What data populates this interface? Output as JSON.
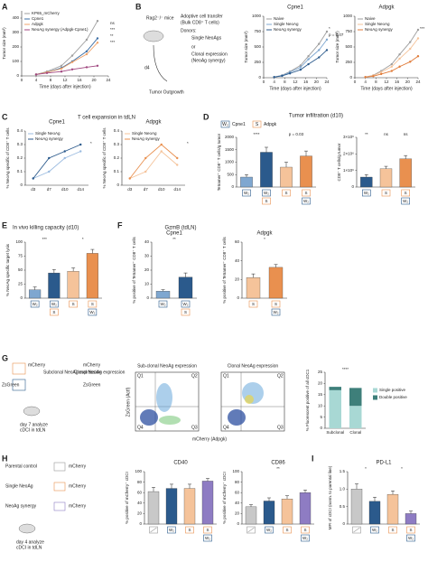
{
  "panels": [
    "A",
    "B",
    "C",
    "D",
    "E",
    "F",
    "G",
    "H",
    "I"
  ],
  "icons": {
    "cpne1": "W₂",
    "adpgk": "S"
  },
  "headers": {
    "tcell": "T cell expansion in tdLN",
    "infil": "Tumor infiltration (d10)",
    "d_cpne1": "Cpne1",
    "d_adpgk": "Adpgk",
    "killing": "In vivo killing capacity (d10)",
    "gzmb": "GzmB (tdLN)"
  },
  "diagrams": {
    "b": [
      "Rag2⁻/⁻ mice",
      "Adoptive cell transfer",
      "(Bulk CD8⁺ T cells)",
      "Donors:",
      "Single NeoAgs",
      "or",
      "Clonal expression",
      "(NeoAg synergy)",
      "d4",
      "Tumor Outgrowth"
    ],
    "g": [
      "mCherry",
      "Subclonal NeoAg expression",
      "ZsGreen",
      "mCherry",
      "Clonal NeoAg expression",
      "ZsGreen",
      "day 7 analyze",
      "cDCI in tdLN"
    ],
    "h": [
      "Parental control",
      "mCherry",
      "Single NeoAg",
      "mCherry",
      "NeoAg synergy",
      "mCherry",
      "day 4 analyze",
      "cDCI in tdLN"
    ]
  },
  "flow": {
    "titles": [
      "Sub-clonal NeoAg expression",
      "Clonal NeoAg expression"
    ],
    "xlabel": "mCherry (Adpgk)",
    "ylabel": "ZsGreen (Actf)",
    "quadrants": [
      "Q1",
      "Q2",
      "Q3",
      "Q4"
    ]
  },
  "chart_data": [
    {
      "type": "line",
      "ylabel": "Tumor size (mm³)",
      "xlabel": "Time (days after injection)",
      "x": [
        4,
        7,
        11,
        14,
        18,
        21
      ],
      "xlim": [
        0,
        24
      ],
      "xticks": [
        0,
        4,
        8,
        12,
        16,
        20,
        24
      ],
      "ylim": [
        0,
        450
      ],
      "yticks": [
        0,
        100,
        200,
        300,
        400
      ],
      "legend": "upper left",
      "series": [
        {
          "name": "KP65_mCherry",
          "color": "#9e9e9e",
          "values": [
            10,
            30,
            70,
            140,
            250,
            380
          ]
        },
        {
          "name": "Cpne1",
          "color": "#3b6ea5",
          "values": [
            10,
            25,
            55,
            100,
            170,
            260
          ]
        },
        {
          "name": "Adpgk",
          "color": "#f0a36b",
          "values": [
            10,
            25,
            50,
            95,
            150,
            230
          ]
        },
        {
          "name": "NeoAg synergy (Adpgk-Cpne1)",
          "color": "#a0467f",
          "values": [
            10,
            20,
            30,
            45,
            60,
            70
          ]
        }
      ],
      "annotations": [
        "ns",
        "***",
        "**",
        "***"
      ]
    },
    {
      "type": "line",
      "title": "Cpne1",
      "ylabel": "Tumor size (mm³)",
      "xlabel": "Time (days after injection)",
      "x": [
        4,
        7,
        10,
        14,
        17,
        21,
        24
      ],
      "xlim": [
        0,
        24
      ],
      "xticks": [
        0,
        4,
        8,
        12,
        16,
        20,
        24
      ],
      "ylim": [
        0,
        1000
      ],
      "yticks": [
        0,
        250,
        500,
        750,
        1000
      ],
      "legend": "upper left",
      "series": [
        {
          "name": "Naive",
          "color": "#9e9e9e",
          "values": [
            10,
            40,
            100,
            200,
            350,
            550,
            750
          ]
        },
        {
          "name": "Single NeoAg",
          "color": "#7fa7d0",
          "values": [
            10,
            35,
            90,
            170,
            300,
            450,
            620
          ]
        },
        {
          "name": "NeoAg synergy",
          "color": "#2b5a8c",
          "values": [
            10,
            30,
            70,
            130,
            220,
            330,
            450
          ]
        }
      ],
      "annotations": [
        "*",
        "p = 0.07"
      ]
    },
    {
      "type": "line",
      "title": "Adpgk",
      "ylabel": "Tumor size (mm³)",
      "xlabel": "Time (days after injection)",
      "x": [
        4,
        7,
        10,
        14,
        17,
        21,
        24
      ],
      "xlim": [
        0,
        24
      ],
      "xticks": [
        0,
        4,
        8,
        12,
        16,
        20,
        24
      ],
      "ylim": [
        0,
        1000
      ],
      "yticks": [
        0,
        250,
        500,
        750,
        1000
      ],
      "legend": "upper left",
      "series": [
        {
          "name": "Naive",
          "color": "#9e9e9e",
          "values": [
            10,
            40,
            110,
            220,
            380,
            580,
            780
          ]
        },
        {
          "name": "Single NeoAg",
          "color": "#f5c39a",
          "values": [
            10,
            35,
            90,
            180,
            310,
            470,
            640
          ]
        },
        {
          "name": "NeoAg synergy",
          "color": "#e07b39",
          "values": [
            10,
            25,
            60,
            110,
            180,
            260,
            350
          ]
        }
      ],
      "annotations": [
        "***"
      ]
    },
    {
      "type": "line",
      "title": "Cpne1",
      "ylabel": "% NeoAg specific of CD8⁺ T cells",
      "categories": [
        "d3",
        "d7",
        "d10",
        "d14"
      ],
      "ylim": [
        0,
        0.4
      ],
      "yticks": [
        0,
        0.1,
        0.2,
        0.3,
        0.4
      ],
      "legend": "upper left",
      "series": [
        {
          "name": "Single NeoAg",
          "color": "#9bbbe0",
          "values": [
            0.05,
            0.1,
            0.2,
            0.25
          ]
        },
        {
          "name": "NeoAg synergy",
          "color": "#2b5a8c",
          "values": [
            0.05,
            0.2,
            0.25,
            0.3
          ]
        }
      ],
      "annotations": [
        "*"
      ]
    },
    {
      "type": "line",
      "title": "Adpgk",
      "ylabel": "% NeoAg specific of CD8⁺ T cells",
      "categories": [
        "d3",
        "d7",
        "d10",
        "d14"
      ],
      "ylim": [
        0,
        0.4
      ],
      "yticks": [
        0,
        0.1,
        0.2,
        0.3,
        0.4
      ],
      "legend": "upper left",
      "series": [
        {
          "name": "Single NeoAg",
          "color": "#f5c39a",
          "values": [
            0.05,
            0.1,
            0.25,
            0.15
          ]
        },
        {
          "name": "NeoAg synergy",
          "color": "#e9904f",
          "values": [
            0.05,
            0.2,
            0.3,
            0.2
          ]
        }
      ],
      "annotations": [
        "*"
      ]
    },
    {
      "type": "bar",
      "ylabel": "Tetramer⁺ CD8⁺ T cells/g tumor",
      "categories": [
        [
          "W₂"
        ],
        [
          "W₂",
          "S"
        ],
        [
          "S"
        ],
        [
          "S",
          "W₂"
        ]
      ],
      "values": [
        400,
        1400,
        800,
        1250
      ],
      "errors": [
        100,
        200,
        200,
        200
      ],
      "colors": [
        "#7fa7d0",
        "#2b5a8c",
        "#f5c39a",
        "#e9904f"
      ],
      "ylim": [
        0,
        2000
      ],
      "yticks": [
        0,
        500,
        1000,
        1500,
        2000
      ],
      "annotations": [
        "****",
        "p = 0.03"
      ]
    },
    {
      "type": "bar",
      "ylabel": "CD8⁺ T cells/g tumor",
      "categories": [
        [
          "W₂"
        ],
        [
          "S"
        ],
        [
          "S",
          "W₂"
        ]
      ],
      "values": [
        600000,
        1100000,
        1700000
      ],
      "errors": [
        150000,
        150000,
        200000
      ],
      "colors": [
        "#2b5a8c",
        "#f5c39a",
        "#e9904f"
      ],
      "ylim": [
        0,
        3000000
      ],
      "yticks": [
        0,
        {
          "value": 1000000,
          "label": "1×10⁶"
        },
        {
          "value": 2000000,
          "label": "2×10⁶"
        },
        {
          "value": 3000000,
          "label": "3×10⁶"
        }
      ],
      "annotations": [
        "**",
        "ns",
        "ns"
      ]
    },
    {
      "type": "bar",
      "ylabel": "% NeoAg specific target lysis",
      "categories": [
        [
          "W₂"
        ],
        [
          "W₂",
          "S"
        ],
        [
          "S"
        ],
        [
          "S",
          "W₂"
        ]
      ],
      "values": [
        15,
        45,
        48,
        80
      ],
      "errors": [
        5,
        6,
        6,
        7
      ],
      "colors": [
        "#7fa7d0",
        "#2b5a8c",
        "#f5c39a",
        "#e9904f"
      ],
      "ylim": [
        0,
        100
      ],
      "yticks": [
        0,
        25,
        50,
        75,
        100
      ],
      "annotations": [
        "***",
        "*"
      ]
    },
    {
      "type": "bar",
      "title": "Cpne1",
      "ylabel": "% positive of Tetramer⁺ CD8⁺ T cells",
      "categories": [
        [
          "W₂"
        ],
        [
          "W₂",
          "S"
        ]
      ],
      "values": [
        5,
        15
      ],
      "errors": [
        1,
        3
      ],
      "colors": [
        "#7fa7d0",
        "#2b5a8c"
      ],
      "ylim": [
        0,
        40
      ],
      "yticks": [
        0,
        10,
        20,
        30,
        40
      ],
      "annotations": [
        "**"
      ]
    },
    {
      "type": "bar",
      "title": "Adpgk",
      "ylabel": "% positive of Tetramer⁺ CD8⁺ T cells",
      "categories": [
        [
          "S"
        ],
        [
          "S",
          "W₂"
        ]
      ],
      "values": [
        22,
        33
      ],
      "errors": [
        4,
        3
      ],
      "colors": [
        "#f5c39a",
        "#e9904f"
      ],
      "ylim": [
        0,
        60
      ],
      "yticks": [
        0,
        20,
        40,
        60
      ],
      "annotations": [
        "*"
      ]
    },
    {
      "type": "bar",
      "stacked": true,
      "ylabel": "% Fluorescent positive of all cDC1",
      "categories": [
        "Subclonal",
        "Clonal"
      ],
      "ylim": [
        0,
        25
      ],
      "yticks": [
        0,
        5,
        10,
        15,
        20,
        25
      ],
      "legend": "right",
      "series": [
        {
          "name": "Single positive",
          "color": "#a8d8d4",
          "values": [
            17,
            10
          ]
        },
        {
          "name": "Double positive",
          "color": "#3e7f7a",
          "values": [
            1.5,
            8
          ]
        }
      ],
      "annotations": [
        "****"
      ]
    },
    {
      "type": "bar",
      "title": "CD40",
      "ylabel": "% positive of mCherry⁺ cDCI",
      "categories": [
        null,
        [
          "W₂"
        ],
        [
          "S"
        ],
        [
          "S",
          "W₂"
        ]
      ],
      "values": [
        62,
        68,
        68,
        82
      ],
      "errors": [
        8,
        8,
        8,
        5
      ],
      "colors": [
        "#c8c8c8",
        "#2b5a8c",
        "#f5c39a",
        "#8e7cc3"
      ],
      "ylim": [
        0,
        100
      ],
      "yticks": [
        0,
        20,
        40,
        60,
        80,
        100
      ]
    },
    {
      "type": "bar",
      "title": "CD86",
      "ylabel": "% positive of mCherry⁺ cDCI",
      "categories": [
        null,
        [
          "W₂"
        ],
        [
          "S"
        ],
        [
          "S",
          "W₂"
        ]
      ],
      "values": [
        33,
        44,
        48,
        60
      ],
      "errors": [
        4,
        6,
        6,
        5
      ],
      "colors": [
        "#c8c8c8",
        "#2b5a8c",
        "#f5c39a",
        "#8e7cc3"
      ],
      "ylim": [
        0,
        100
      ],
      "yticks": [
        0,
        20,
        40,
        60,
        80,
        100
      ],
      "annotations": [
        "**"
      ]
    },
    {
      "type": "bar",
      "title": "PD-L1",
      "ylabel": "MFI of cDCI (norm. to parental line)",
      "categories": [
        null,
        [
          "W₂"
        ],
        [
          "S"
        ],
        [
          "S",
          "W₂"
        ]
      ],
      "values": [
        1.0,
        0.65,
        0.85,
        0.3
      ],
      "errors": [
        0.15,
        0.12,
        0.1,
        0.07
      ],
      "colors": [
        "#c8c8c8",
        "#2b5a8c",
        "#f5c39a",
        "#8e7cc3"
      ],
      "ylim": [
        0,
        1.5
      ],
      "yticks": [
        0,
        0.5,
        {
          "value": 1,
          "label": "1.0"
        },
        1.5
      ],
      "annotations": [
        "*",
        "*"
      ]
    }
  ]
}
